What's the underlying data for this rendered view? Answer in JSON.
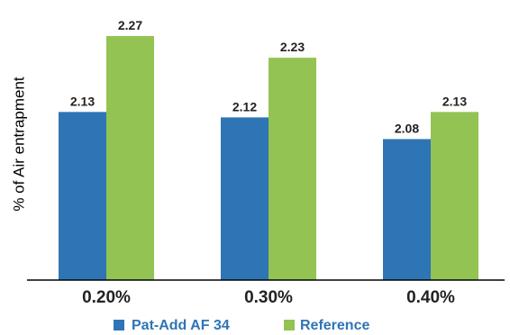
{
  "chart_data": {
    "type": "bar",
    "title": "",
    "xlabel": "",
    "ylabel": "% of Air entrapment",
    "categories": [
      "0.20%",
      "0.30%",
      "0.40%"
    ],
    "series": [
      {
        "name": "Pat-Add AF 34",
        "values": [
          2.13,
          2.12,
          2.08
        ],
        "labels": [
          "2.13",
          "2.12",
          "2.08"
        ],
        "color": "#2e75b6"
      },
      {
        "name": "Reference",
        "values": [
          2.27,
          2.23,
          2.13
        ],
        "labels": [
          "2.27",
          "2.23",
          "2.13"
        ],
        "color": "#92c353"
      }
    ],
    "ylim": [
      1.82,
      2.285
    ],
    "grid": false,
    "legend_position": "bottom"
  }
}
